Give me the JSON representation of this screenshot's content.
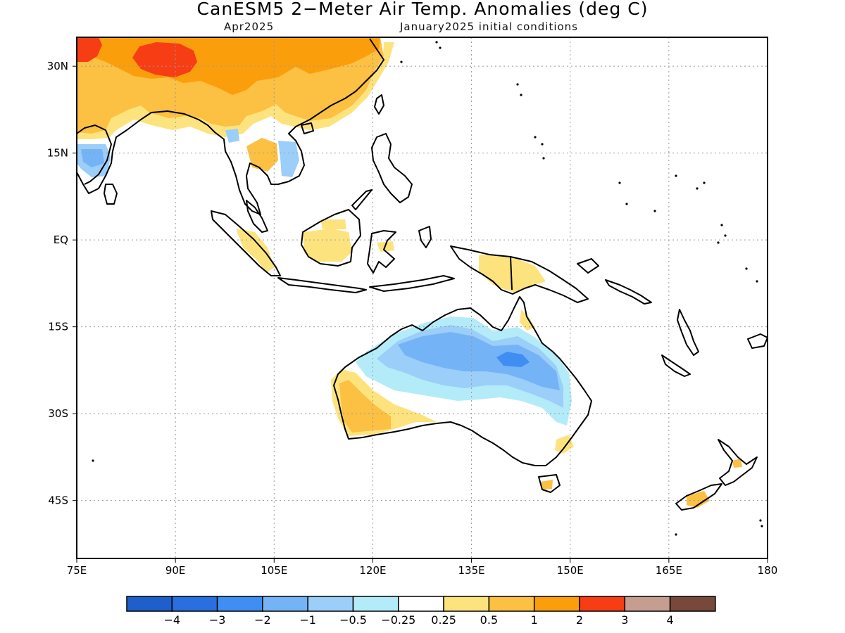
{
  "title": "CanESM5 2−Meter Air Temp. Anomalies (deg C)",
  "subtitle_left": "Apr2025",
  "subtitle_right": "January2025 initial conditions",
  "map": {
    "lon_range": [
      75,
      180
    ],
    "lat_range": [
      -55,
      35
    ],
    "grid": true,
    "lon_ticks": [
      {
        "value": 75,
        "label": "75E"
      },
      {
        "value": 90,
        "label": "90E"
      },
      {
        "value": 105,
        "label": "105E"
      },
      {
        "value": 120,
        "label": "120E"
      },
      {
        "value": 135,
        "label": "135E"
      },
      {
        "value": 150,
        "label": "150E"
      },
      {
        "value": 165,
        "label": "165E"
      },
      {
        "value": 180,
        "label": "180"
      }
    ],
    "lat_ticks": [
      {
        "value": 30,
        "label": "30N"
      },
      {
        "value": 15,
        "label": "15N"
      },
      {
        "value": 0,
        "label": "EQ"
      },
      {
        "value": -15,
        "label": "15S"
      },
      {
        "value": -30,
        "label": "30S"
      },
      {
        "value": -45,
        "label": "45S"
      }
    ]
  },
  "colorbar": {
    "colors": [
      "#1f5fcb",
      "#2a6fe0",
      "#3f8ef2",
      "#74b3f6",
      "#9bcef8",
      "#b3ecf8",
      "#ffffff",
      "#fde37e",
      "#fcc042",
      "#fb9e0c",
      "#f73d14",
      "#c69d91",
      "#77493c"
    ],
    "labels": [
      "−4",
      "−3",
      "−2",
      "−1",
      "−0.5",
      "−0.25",
      "0.25",
      "0.5",
      "1",
      "2",
      "3",
      "4"
    ]
  },
  "anomaly_colors": {
    "strong_warm": "#f73d14",
    "warm": "#fb9e0c",
    "moderate_warm": "#fcc042",
    "weak_warm": "#fde37e",
    "weak_cool": "#b3ecf8",
    "cool": "#9bcef8",
    "moderate_cool": "#74b3f6",
    "strong_cool": "#3f8ef2",
    "coast": "#000000"
  }
}
